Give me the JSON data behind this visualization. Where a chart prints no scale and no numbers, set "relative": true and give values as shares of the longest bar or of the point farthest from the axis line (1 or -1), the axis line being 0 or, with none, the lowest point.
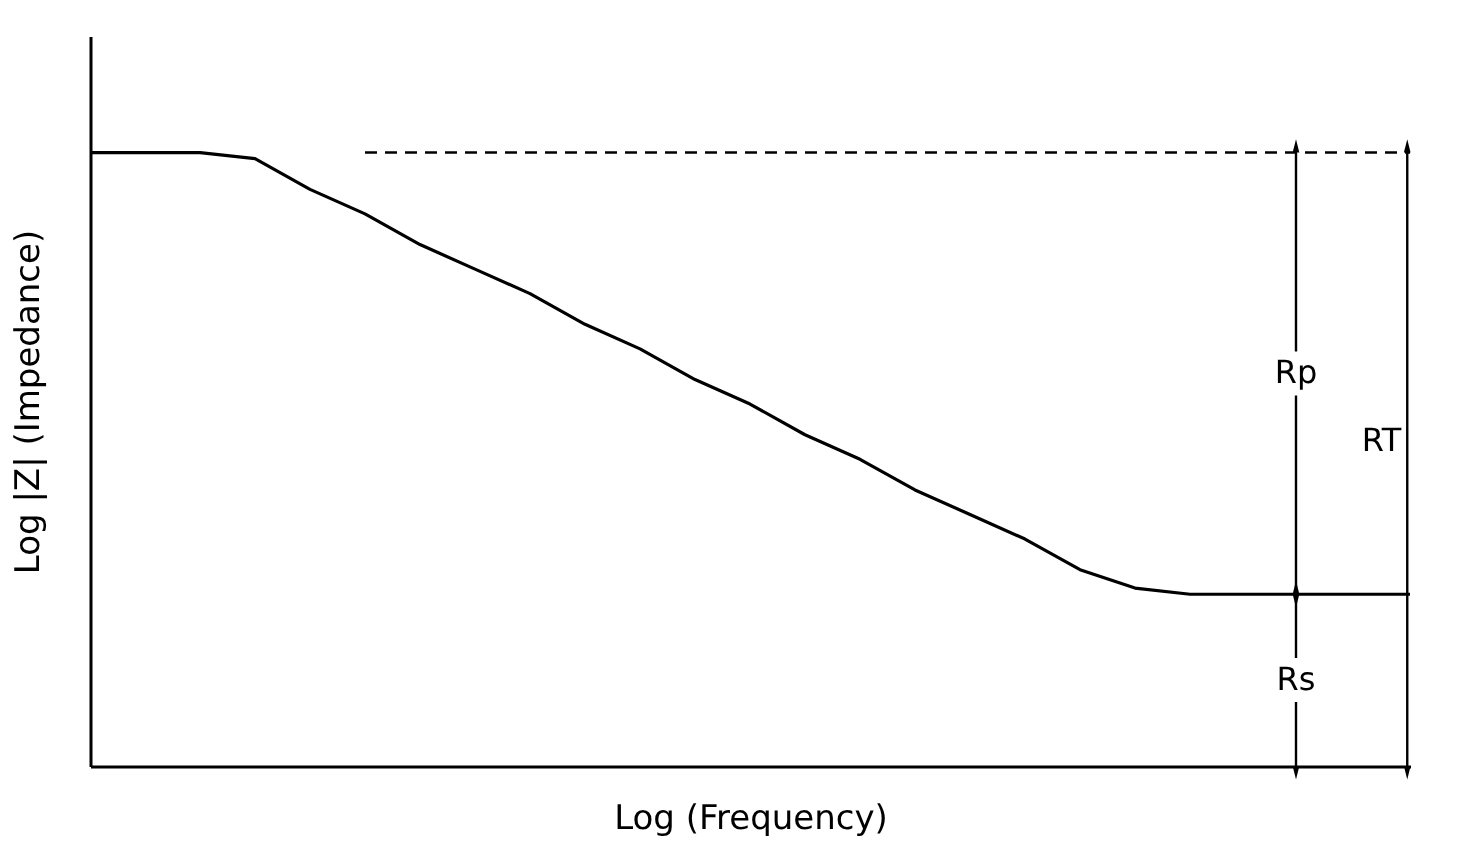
{
  "chart_data": {
    "type": "line",
    "relative": true,
    "xlabel": "Log (Frequency)",
    "ylabel": "Log |Z| (Impedance)",
    "categories": [
      null,
      null,
      null,
      null,
      null,
      null,
      null,
      null,
      null,
      null,
      null,
      null,
      null,
      null,
      null,
      null,
      null,
      null,
      null,
      null,
      null,
      null,
      null,
      null,
      null
    ],
    "series": [
      {
        "color": "#000000",
        "values": [
          1,
          1,
          1,
          0.99,
          0.94,
          0.9,
          0.85,
          0.81,
          0.77,
          0.72,
          0.68,
          0.63,
          0.59,
          0.54,
          0.5,
          0.45,
          0.41,
          0.37,
          0.32,
          0.29,
          0.28,
          0.28,
          0.28,
          0.28,
          0.28
        ]
      }
    ],
    "ref_lines": [
      {
        "axis": "y",
        "value": 1,
        "line_style": "dashed"
      }
    ],
    "annotations": [
      "Rp",
      "Rs",
      "RT"
    ],
    "grid": false,
    "marker": "none",
    "line_style": "solid"
  }
}
